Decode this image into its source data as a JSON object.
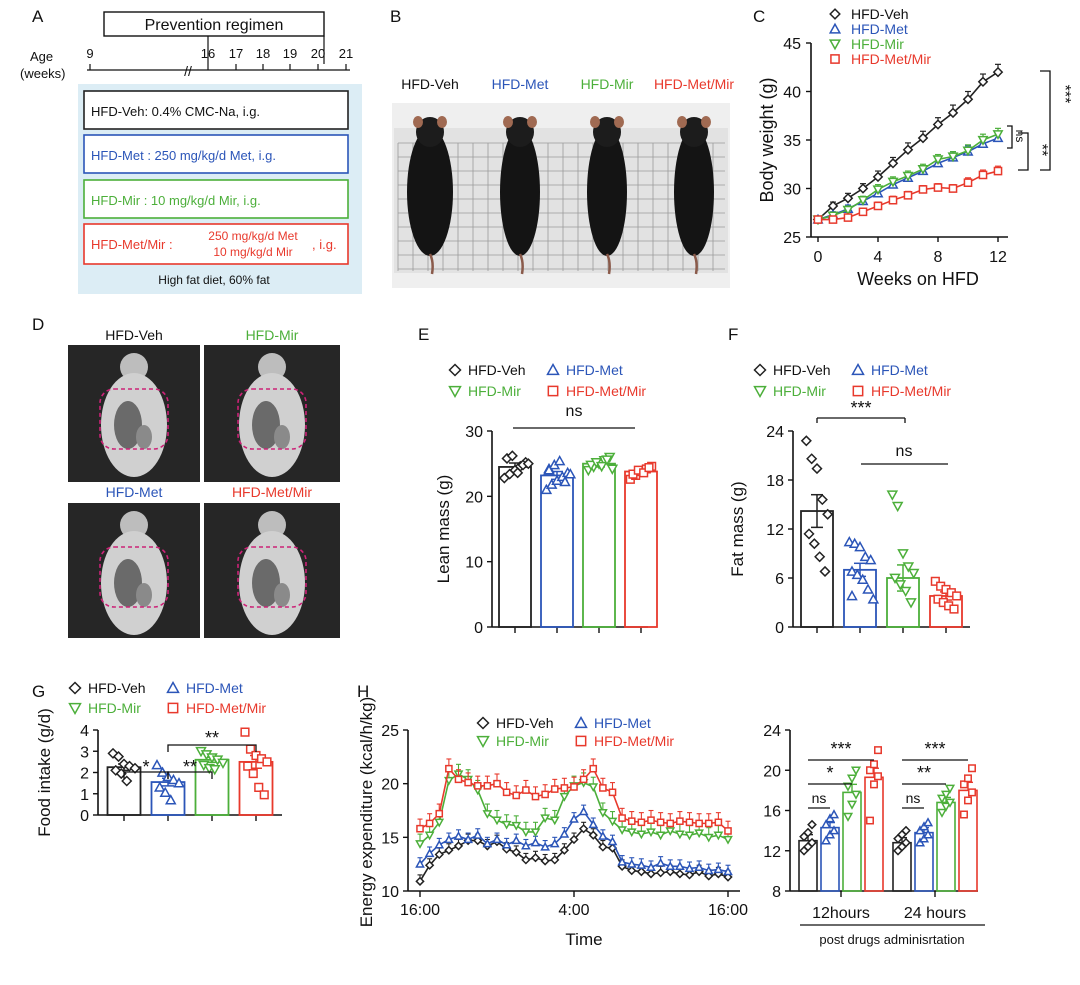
{
  "colors": {
    "veh": "#222222",
    "met": "#2b55b8",
    "mir": "#4caf3a",
    "metmir": "#e8392c",
    "panel_bg": "#dcedf5",
    "mri_ring": "#cc2277"
  },
  "panel_letters": [
    "A",
    "B",
    "C",
    "D",
    "E",
    "F",
    "G",
    "H"
  ],
  "groups": {
    "veh": "HFD-Veh",
    "met": "HFD-Met",
    "mir": "HFD-Mir",
    "metmir": "HFD-Met/Mir"
  },
  "panel_a": {
    "regimen_title": "Prevention regimen",
    "age_label_1": "Age",
    "age_label_2": "(weeks)",
    "age_ticks": [
      "9",
      "16",
      "17",
      "18",
      "19",
      "20",
      "21"
    ],
    "break_mark": "//",
    "box_veh": "HFD-Veh: 0.4% CMC-Na, i.g.",
    "box_met": "HFD-Met : 250 mg/kg/d Met, i.g.",
    "box_mir": "HFD-Mir : 10 mg/kg/d Mir, i.g.",
    "box_metmir_prefix": "HFD-Met/Mir :",
    "box_metmir_line1": "250 mg/kg/d Met",
    "box_metmir_line2": "10  mg/kg/d Mir",
    "box_metmir_suffix": ", i.g.",
    "diet_note": "High fat diet, 60% fat"
  },
  "panel_b": {
    "labels": [
      "HFD-Veh",
      "HFD-Met",
      "HFD-Mir",
      "HFD-Met/Mir"
    ]
  },
  "panel_d": {
    "labels": [
      "HFD-Veh",
      "HFD-Mir",
      "HFD-Met",
      "HFD-Met/Mir"
    ]
  },
  "chart_data": [
    {
      "panel": "C",
      "type": "line",
      "xlabel": "Weeks on HFD",
      "ylabel": "Body weight (g)",
      "xlim": [
        0,
        13
      ],
      "ylim": [
        25,
        45
      ],
      "xticks": [
        0,
        4,
        8,
        12
      ],
      "yticks": [
        25,
        30,
        35,
        40,
        45
      ],
      "x": [
        0,
        1,
        2,
        3,
        4,
        5,
        6,
        7,
        8,
        9,
        10,
        11,
        12
      ],
      "series": [
        {
          "name": "HFD-Veh",
          "key": "veh",
          "marker": "diamond",
          "values": [
            26.8,
            28.2,
            29.0,
            30.0,
            31.2,
            32.6,
            34.0,
            35.2,
            36.6,
            37.8,
            39.2,
            41.0,
            42.0
          ],
          "errors": [
            0.3,
            0.4,
            0.5,
            0.5,
            0.6,
            0.6,
            0.7,
            0.7,
            0.7,
            0.8,
            0.8,
            0.8,
            0.8
          ]
        },
        {
          "name": "HFD-Met",
          "key": "met",
          "marker": "triangle-up",
          "values": [
            26.8,
            27.3,
            27.9,
            28.7,
            29.5,
            30.4,
            31.1,
            31.8,
            32.6,
            33.2,
            33.8,
            34.6,
            35.2
          ],
          "errors": [
            0.3,
            0.3,
            0.4,
            0.4,
            0.5,
            0.5,
            0.5,
            0.5,
            0.5,
            0.6,
            0.6,
            0.6,
            0.6
          ]
        },
        {
          "name": "HFD-Mir",
          "key": "mir",
          "marker": "triangle-down",
          "values": [
            26.8,
            27.2,
            27.8,
            28.8,
            29.9,
            30.7,
            31.3,
            32.0,
            33.0,
            33.3,
            33.9,
            35.0,
            35.6
          ],
          "errors": [
            0.3,
            0.3,
            0.4,
            0.4,
            0.5,
            0.5,
            0.5,
            0.5,
            0.5,
            0.5,
            0.6,
            0.6,
            0.6
          ]
        },
        {
          "name": "HFD-Met/Mir",
          "key": "metmir",
          "marker": "square",
          "values": [
            26.8,
            26.8,
            27.0,
            27.6,
            28.2,
            28.8,
            29.3,
            29.9,
            30.1,
            30.0,
            30.6,
            31.4,
            31.8
          ],
          "errors": [
            0.2,
            0.3,
            0.3,
            0.3,
            0.4,
            0.4,
            0.4,
            0.4,
            0.4,
            0.4,
            0.5,
            0.5,
            0.5
          ]
        }
      ],
      "significance": [
        "***",
        "**",
        "ns"
      ]
    },
    {
      "panel": "E",
      "type": "bar",
      "ylabel": "Lean mass (g)",
      "ylim": [
        0,
        30
      ],
      "yticks": [
        0,
        10,
        20,
        30
      ],
      "categories": [
        "HFD-Veh",
        "HFD-Met",
        "HFD-Mir",
        "HFD-Met/Mir"
      ],
      "values": [
        24.5,
        23.2,
        25.0,
        23.8
      ],
      "errors": [
        0.6,
        0.6,
        0.5,
        0.4
      ],
      "points": [
        [
          22.8,
          23.4,
          24.0,
          24.6,
          25.2,
          25.8,
          26.2,
          23.6,
          24.8,
          25.0
        ],
        [
          21.0,
          21.8,
          22.4,
          23.0,
          23.6,
          24.2,
          24.8,
          25.4,
          22.2,
          23.4,
          24.0
        ],
        [
          24.0,
          24.5,
          25.0,
          25.5,
          26.0,
          24.8,
          25.2,
          24.6,
          25.6,
          24.2
        ],
        [
          22.6,
          23.2,
          23.8,
          24.2,
          24.6,
          23.4,
          24.0,
          23.6,
          24.4
        ]
      ],
      "significance": [
        "ns"
      ]
    },
    {
      "panel": "F",
      "type": "bar",
      "ylabel": "Fat mass (g)",
      "ylim": [
        0,
        24
      ],
      "yticks": [
        0,
        6,
        12,
        18,
        24
      ],
      "categories": [
        "HFD-Veh",
        "HFD-Met",
        "HFD-Mir",
        "HFD-Met/Mir"
      ],
      "values": [
        14.2,
        7.0,
        6.0,
        3.8
      ],
      "errors": [
        2.0,
        0.8,
        1.6,
        0.5
      ],
      "points": [
        [
          22.8,
          20.6,
          19.4,
          15.6,
          13.8,
          11.4,
          10.2,
          8.6,
          6.8
        ],
        [
          10.4,
          10.2,
          9.8,
          8.6,
          8.2,
          6.8,
          6.4,
          5.8,
          4.6,
          3.4,
          3.8
        ],
        [
          16.2,
          14.8,
          9.0,
          7.4,
          6.6,
          6.0,
          5.2,
          4.4,
          3.0
        ],
        [
          5.6,
          5.0,
          4.6,
          4.2,
          3.8,
          3.4,
          3.0,
          2.6,
          2.2
        ]
      ],
      "significance": [
        "***",
        "ns"
      ]
    },
    {
      "panel": "G",
      "type": "bar",
      "ylabel": "Food intake (g/d)",
      "ylim": [
        0,
        4
      ],
      "yticks": [
        0,
        1,
        2,
        3,
        4
      ],
      "categories": [
        "HFD-Veh",
        "HFD-Met",
        "HFD-Mir",
        "HFD-Met/Mir"
      ],
      "values": [
        2.25,
        1.55,
        2.6,
        2.5
      ],
      "errors": [
        0.15,
        0.18,
        0.12,
        0.3
      ],
      "points": [
        [
          2.9,
          2.75,
          2.4,
          2.3,
          2.2,
          2.1,
          1.95,
          1.6
        ],
        [
          2.35,
          2.0,
          1.8,
          1.65,
          1.5,
          1.3,
          1.05,
          0.7
        ],
        [
          3.0,
          2.85,
          2.7,
          2.6,
          2.45,
          2.35,
          2.2,
          2.15
        ],
        [
          3.9,
          3.1,
          2.8,
          2.65,
          2.5,
          2.3,
          1.95,
          1.3,
          0.95
        ]
      ],
      "significance": [
        "*",
        "**",
        "**"
      ]
    },
    {
      "panel": "H-left",
      "type": "line",
      "xlabel": "Time",
      "ylabel": "Energy expenditure (kcal/h/kg)",
      "ylim": [
        10,
        25
      ],
      "yticks": [
        10,
        15,
        20,
        25
      ],
      "xtick_labels": [
        "16:00",
        "4:00",
        "16:00"
      ],
      "x": [
        0,
        1,
        2,
        3,
        4,
        5,
        6,
        7,
        8,
        9,
        10,
        11,
        12,
        13,
        14,
        15,
        16,
        17,
        18,
        19,
        20,
        21,
        22,
        23,
        24,
        25,
        26,
        27,
        28,
        29,
        30,
        31,
        32
      ],
      "series": [
        {
          "name": "HFD-Veh",
          "key": "veh",
          "marker": "diamond",
          "values": [
            10.9,
            12.4,
            13.4,
            13.8,
            14.2,
            14.7,
            14.7,
            14.2,
            14.6,
            13.9,
            13.6,
            12.9,
            13.1,
            12.8,
            12.9,
            13.8,
            14.8,
            15.8,
            15.2,
            14.1,
            14.0,
            12.3,
            11.9,
            11.8,
            11.6,
            11.7,
            11.8,
            11.6,
            11.5,
            11.8,
            11.4,
            11.6,
            11.3
          ]
        },
        {
          "name": "HFD-Met",
          "key": "met",
          "marker": "triangle-up",
          "values": [
            12.5,
            13.5,
            14.3,
            14.8,
            15.1,
            14.8,
            15.2,
            14.4,
            14.8,
            14.3,
            14.7,
            14.2,
            14.5,
            14.1,
            14.4,
            15.3,
            16.7,
            17.4,
            16.2,
            15.1,
            14.6,
            12.7,
            12.5,
            12.4,
            12.2,
            12.6,
            12.3,
            12.3,
            12.1,
            12.2,
            11.9,
            12.0,
            11.8
          ]
        },
        {
          "name": "HFD-Mir",
          "key": "mir",
          "marker": "triangle-down",
          "values": [
            14.4,
            15.2,
            16.4,
            20.3,
            20.9,
            20.4,
            19.4,
            17.2,
            16.6,
            16.2,
            16.1,
            15.5,
            15.5,
            16.8,
            16.6,
            18.8,
            19.8,
            20.1,
            19.7,
            17.3,
            16.5,
            15.7,
            15.5,
            15.3,
            15.5,
            15.2,
            15.6,
            15.3,
            15.2,
            15.4,
            15.0,
            15.2,
            14.8
          ]
        },
        {
          "name": "HFD-Met/Mir",
          "key": "metmir",
          "marker": "square",
          "values": [
            15.8,
            16.3,
            17.2,
            21.4,
            20.4,
            20.1,
            19.8,
            19.8,
            20.0,
            19.2,
            18.9,
            19.4,
            18.8,
            19.0,
            19.5,
            19.6,
            19.7,
            20.4,
            21.4,
            19.6,
            19.2,
            16.8,
            16.5,
            16.4,
            16.6,
            16.4,
            16.3,
            16.5,
            16.4,
            16.3,
            16.3,
            16.4,
            15.6
          ]
        }
      ]
    },
    {
      "panel": "H-right",
      "type": "bar",
      "ylim": [
        8,
        24
      ],
      "yticks": [
        8,
        12,
        16,
        20,
        24
      ],
      "categories": [
        "12hours",
        "24 hours"
      ],
      "sublabel": "post drugs adminisrtation",
      "series": [
        {
          "name": "HFD-Veh",
          "key": "veh",
          "values": [
            13.0,
            12.8
          ],
          "errors": [
            0.6,
            0.5
          ],
          "points": [
            [
              12.0,
              12.4,
              12.8,
              13.4,
              13.8,
              14.6
            ],
            [
              12.0,
              12.4,
              12.8,
              13.2,
              13.6,
              14.0
            ]
          ]
        },
        {
          "name": "HFD-Met",
          "key": "met",
          "values": [
            14.3,
            13.8
          ],
          "errors": [
            0.5,
            0.5
          ],
          "points": [
            [
              13.0,
              13.6,
              14.0,
              14.6,
              15.2,
              15.6
            ],
            [
              12.8,
              13.2,
              13.6,
              14.0,
              14.4,
              14.8
            ]
          ]
        },
        {
          "name": "HFD-Mir",
          "key": "mir",
          "values": [
            17.8,
            16.8
          ],
          "errors": [
            0.8,
            0.5
          ],
          "points": [
            [
              15.4,
              16.6,
              17.6,
              18.4,
              19.2,
              20.0
            ],
            [
              15.8,
              16.4,
              16.8,
              17.2,
              17.6,
              18.2
            ]
          ]
        },
        {
          "name": "HFD-Met/Mir",
          "key": "metmir",
          "values": [
            19.3,
            18.0
          ],
          "errors": [
            0.9,
            0.8
          ],
          "points": [
            [
              15.0,
              18.6,
              19.4,
              20.0,
              20.6,
              22.0
            ],
            [
              15.6,
              17.0,
              17.8,
              18.6,
              19.2,
              20.2
            ]
          ]
        }
      ],
      "significance": [
        "ns",
        "*",
        "***",
        "ns",
        "**",
        "***"
      ]
    }
  ]
}
